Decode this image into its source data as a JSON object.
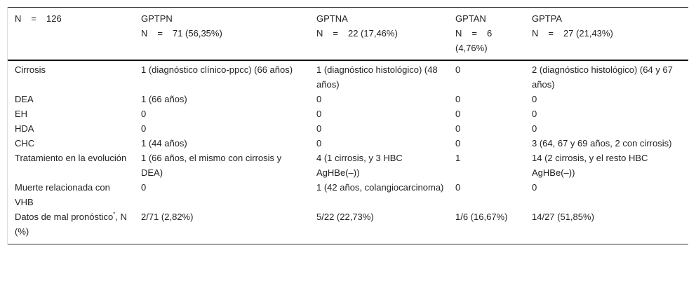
{
  "header": [
    {
      "group": "",
      "n_label": "N",
      "eq": "=",
      "n_value": "126"
    },
    {
      "group": "GPTPN",
      "n_label": "N",
      "eq": "=",
      "n_value": "71 (56,35%)"
    },
    {
      "group": "GPTNA",
      "n_label": "N",
      "eq": "=",
      "n_value": "22 (17,46%)"
    },
    {
      "group": "GPTAN",
      "n_label": "N",
      "eq": "=",
      "n_value": "6 (4,76%)"
    },
    {
      "group": "GPTPA",
      "n_label": "N",
      "eq": "=",
      "n_value": "27 (21,43%)"
    }
  ],
  "rows": [
    {
      "label": "Cirrosis",
      "cells": [
        "1 (diagnóstico clínico-ppcc) (66 años)",
        "1 (diagnóstico histológico) (48 años)",
        "0",
        "2 (diagnóstico histológico) (64 y 67 años)"
      ]
    },
    {
      "label": "DEA",
      "cells": [
        "1 (66 años)",
        "0",
        "0",
        "0"
      ]
    },
    {
      "label": "EH",
      "cells": [
        "0",
        "0",
        "0",
        "0"
      ]
    },
    {
      "label": "HDA",
      "cells": [
        "0",
        "0",
        "0",
        "0"
      ]
    },
    {
      "label": "CHC",
      "cells": [
        "1 (44 años)",
        "0",
        "0",
        "3 (64, 67 y 69 años, 2 con cirrosis)"
      ]
    },
    {
      "label": "Tratamiento en la evolución",
      "cells": [
        "1 (66 años, el mismo con cirrosis y DEA)",
        "4 (1 cirrosis, y 3 HBC AgHBe(–))",
        "1",
        "14 (2 cirrosis, y el resto HBC AgHBe(–))"
      ]
    },
    {
      "label": "Muerte relacionada con VHB",
      "cells": [
        "0",
        "1 (42 años, colangiocarcinoma)",
        "0",
        "0"
      ]
    },
    {
      "label": "Datos de mal pronóstico",
      "label_sup": "*",
      "label_suffix": ", N (%)",
      "cells": [
        "2/71 (2,82%)",
        "5/22 (22,73%)",
        "1/6 (16,67%)",
        "14/27 (51,85%)"
      ]
    }
  ]
}
